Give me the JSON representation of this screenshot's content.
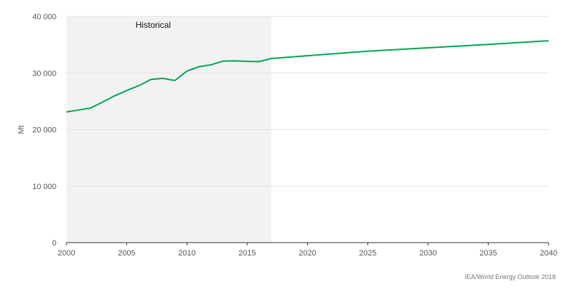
{
  "chart_data": {
    "type": "line",
    "title": "",
    "xlabel": "",
    "ylabel": "Mt",
    "xlim": [
      2000,
      2040
    ],
    "ylim": [
      0,
      40000
    ],
    "x_ticks": [
      2000,
      2005,
      2010,
      2015,
      2020,
      2025,
      2030,
      2035,
      2040
    ],
    "y_ticks": [
      0,
      10000,
      20000,
      30000,
      40000
    ],
    "y_tick_labels": [
      "0",
      "10 000",
      "20 000",
      "30 000",
      "40 000"
    ],
    "grid": "horizontal",
    "legend": "none",
    "color": "#00a651",
    "shaded_region": {
      "label": "Historical",
      "x_start": 2000,
      "x_end": 2017,
      "color": "#f2f2f2"
    },
    "series": [
      {
        "x": [
          2000,
          2001,
          2002,
          2003,
          2004,
          2005,
          2006,
          2007,
          2008,
          2009,
          2010,
          2011,
          2012,
          2013,
          2014,
          2015,
          2016,
          2017,
          2025,
          2030,
          2035,
          2040
        ],
        "values": [
          23100,
          23450,
          23800,
          24850,
          25950,
          26900,
          27750,
          28850,
          29050,
          28650,
          30350,
          31100,
          31450,
          32100,
          32150,
          32050,
          32000,
          32550,
          33850,
          34450,
          35050,
          35700
        ]
      }
    ]
  },
  "source": "IEA/World Energy Outlook 2018"
}
